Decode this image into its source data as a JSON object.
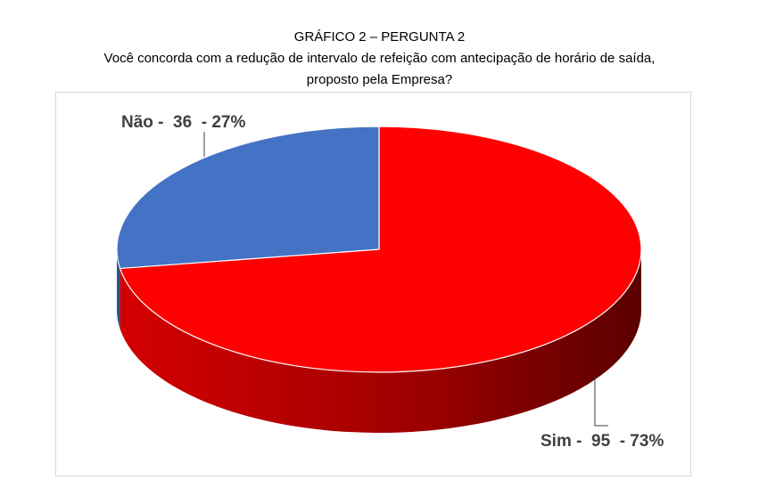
{
  "header": {
    "title": "GRÁFICO 2 – PERGUNTA 2",
    "question_line1": "Você concorda com a redução de intervalo de refeição com antecipação de horário de saída,",
    "question_line2": "proposto pela Empresa?"
  },
  "chart_data": {
    "type": "pie",
    "style": "3d",
    "title": "GRÁFICO 2 – PERGUNTA 2",
    "subtitle": "Você concorda com a redução de intervalo de refeição com antecipação de horário de saída, proposto pela Empresa?",
    "slices": [
      {
        "label": "Sim",
        "value": 95,
        "percent": 73,
        "color": "#ff0000",
        "side_color": "#c00000",
        "data_label": "Sim -  95  - 73%"
      },
      {
        "label": "Não",
        "value": 36,
        "percent": 27,
        "color": "#4472c4",
        "side_color": "#2f528f",
        "data_label": "Não -  36  - 27%"
      }
    ],
    "legend": "none"
  }
}
